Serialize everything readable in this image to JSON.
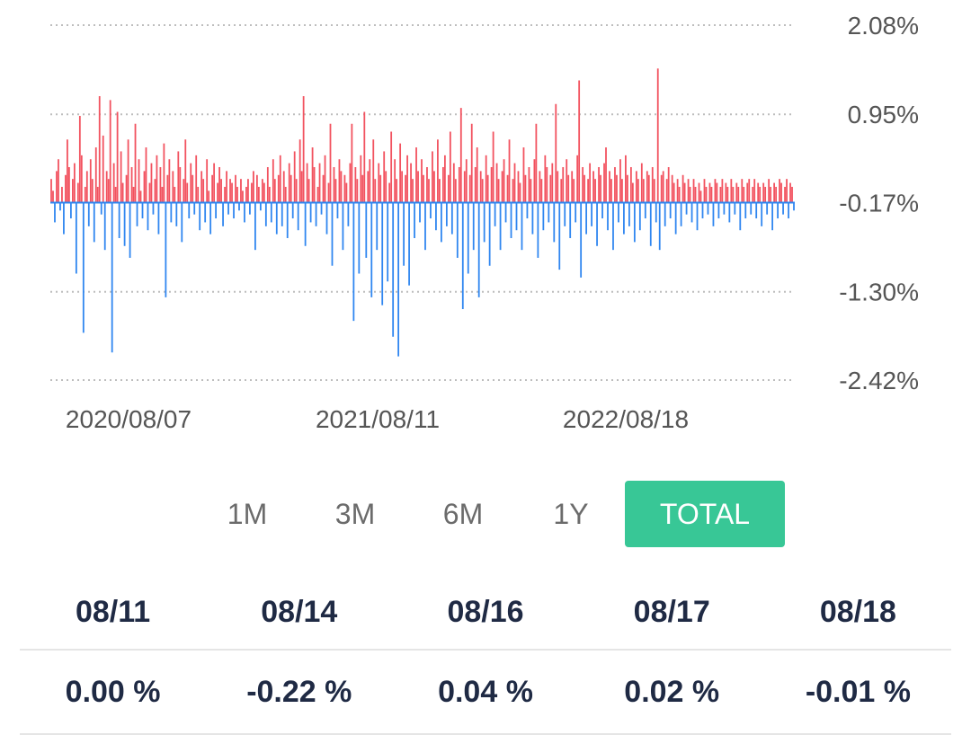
{
  "colors": {
    "positive": "#f2525f",
    "negative": "#2f86f0",
    "active": "#38c796",
    "grid": "#bdbdbd"
  },
  "chart_data": {
    "type": "bar",
    "y_tick_labels": [
      "2.08%",
      "0.95%",
      "-0.17%",
      "-1.30%",
      "-2.42%"
    ],
    "y_ticks": [
      2.08,
      0.95,
      -0.17,
      -1.3,
      -2.42
    ],
    "ylim": [
      -2.42,
      2.08
    ],
    "baseline": -0.17,
    "x_tick_labels": [
      "2020/08/07",
      "2021/08/11",
      "2022/08/18"
    ],
    "grid": "horizontal dotted",
    "values": [
      0.3,
      0.15,
      -0.25,
      0.4,
      0.55,
      -0.1,
      0.2,
      -0.4,
      0.35,
      0.8,
      0.45,
      -0.2,
      0.3,
      0.5,
      -0.9,
      0.25,
      1.1,
      0.6,
      -1.65,
      0.2,
      0.4,
      -0.3,
      0.55,
      0.3,
      -0.5,
      0.7,
      0.2,
      1.35,
      -0.15,
      0.85,
      -0.6,
      0.4,
      0.3,
      1.3,
      -1.9,
      0.5,
      0.2,
      1.15,
      -0.45,
      0.65,
      0.25,
      -0.55,
      0.35,
      0.8,
      -0.7,
      0.45,
      0.2,
      1.0,
      -0.3,
      0.55,
      0.15,
      -0.2,
      0.4,
      0.7,
      -0.35,
      0.25,
      0.5,
      -0.15,
      0.3,
      0.6,
      -0.4,
      0.45,
      0.2,
      0.75,
      -1.2,
      0.35,
      0.55,
      -0.25,
      0.4,
      0.2,
      -0.3,
      0.65,
      0.45,
      -0.5,
      0.3,
      0.8,
      0.25,
      -0.2,
      0.5,
      0.35,
      -0.15,
      0.6,
      0.2,
      -0.35,
      0.4,
      0.3,
      -0.25,
      0.55,
      0.15,
      -0.4,
      0.35,
      0.5,
      -0.2,
      0.25,
      0.45,
      0.3,
      -0.3,
      0.2,
      0.4,
      -0.15,
      0.3,
      0.25,
      -0.2,
      0.35,
      0.2,
      -0.1,
      0.3,
      0.15,
      -0.25,
      0.2,
      0.3,
      -0.15,
      0.25,
      0.4,
      -0.6,
      0.35,
      0.2,
      -0.1,
      0.3,
      0.25,
      -0.3,
      0.45,
      0.2,
      -0.25,
      0.55,
      0.3,
      -0.4,
      0.35,
      0.6,
      -0.3,
      0.4,
      0.2,
      -0.45,
      0.5,
      0.35,
      -0.2,
      0.65,
      0.3,
      -0.35,
      0.8,
      0.4,
      1.35,
      -0.55,
      0.5,
      0.3,
      -0.25,
      0.7,
      0.45,
      -0.3,
      0.2,
      0.5,
      -0.15,
      0.35,
      0.6,
      -0.4,
      0.25,
      1.0,
      -0.8,
      0.45,
      0.3,
      -0.2,
      0.55,
      0.4,
      -0.6,
      0.35,
      0.25,
      -0.3,
      0.5,
      1.0,
      -1.5,
      0.45,
      0.3,
      -0.9,
      0.6,
      0.35,
      1.15,
      -0.7,
      0.4,
      0.55,
      -1.2,
      0.8,
      0.3,
      -0.6,
      0.5,
      0.35,
      -1.3,
      0.65,
      0.4,
      -1.0,
      0.25,
      0.9,
      -1.7,
      0.55,
      0.3,
      -1.95,
      0.75,
      0.4,
      -0.8,
      0.35,
      0.6,
      -1.05,
      0.5,
      0.3,
      -0.45,
      0.7,
      0.4,
      -0.25,
      0.55,
      0.35,
      -0.6,
      0.45,
      0.3,
      -0.2,
      0.65,
      0.4,
      -0.35,
      0.8,
      0.3,
      -0.5,
      0.45,
      0.6,
      -0.3,
      0.35,
      0.9,
      -0.4,
      0.5,
      0.3,
      -0.7,
      0.45,
      1.2,
      -1.35,
      0.4,
      0.55,
      -0.9,
      0.35,
      1.0,
      -0.6,
      0.45,
      0.7,
      -1.2,
      0.4,
      0.3,
      -0.5,
      0.6,
      0.35,
      -0.8,
      0.45,
      0.9,
      -0.3,
      0.5,
      0.3,
      -0.6,
      0.4,
      0.55,
      -0.25,
      0.35,
      0.8,
      -0.45,
      0.3,
      0.5,
      -0.35,
      0.4,
      0.25,
      -0.6,
      0.7,
      0.35,
      -0.2,
      0.45,
      0.3,
      -0.4,
      0.55,
      1.0,
      -0.7,
      0.4,
      0.3,
      -0.35,
      0.6,
      0.45,
      -0.25,
      0.35,
      0.5,
      -0.5,
      1.25,
      0.4,
      -0.85,
      0.3,
      0.45,
      -0.3,
      0.55,
      0.35,
      -0.45,
      0.4,
      0.3,
      -0.25,
      0.6,
      1.55,
      -0.95,
      0.45,
      0.35,
      -0.4,
      0.3,
      0.5,
      -0.3,
      0.4,
      0.3,
      -0.55,
      0.45,
      0.35,
      -0.2,
      0.5,
      0.7,
      -0.35,
      0.4,
      0.3,
      -0.6,
      0.45,
      0.35,
      -0.25,
      0.55,
      0.3,
      -0.4,
      0.6,
      0.35,
      -0.3,
      0.45,
      0.25,
      -0.5,
      0.4,
      0.3,
      -0.35,
      0.5,
      0.3,
      -0.2,
      0.4,
      0.35,
      -0.55,
      0.45,
      0.3,
      -0.25,
      1.7,
      -0.6,
      0.35,
      0.4,
      -0.3,
      0.3,
      0.45,
      -0.2,
      0.35,
      0.25,
      -0.4,
      0.3,
      0.2,
      -0.3,
      0.35,
      0.25,
      -0.15,
      0.3,
      0.2,
      -0.25,
      0.3,
      0.2,
      -0.35,
      0.25,
      0.15,
      -0.2,
      0.3,
      0.2,
      -0.15,
      0.25,
      0.2,
      -0.3,
      0.3,
      0.25,
      -0.2,
      0.2,
      0.3,
      -0.15,
      0.25,
      0.2,
      -0.25,
      0.3,
      0.2,
      -0.15,
      0.25,
      0.2,
      -0.35,
      0.3,
      0.2,
      -0.2,
      0.25,
      0.3,
      -0.15,
      0.2,
      0.3,
      -0.2,
      0.25,
      0.2,
      -0.3,
      0.25,
      0.2,
      -0.15,
      0.3,
      0.2,
      -0.35,
      0.25,
      0.2,
      -0.2,
      0.3,
      0.25,
      -0.15,
      0.2,
      0.3,
      -0.2,
      0.25,
      0.2,
      -0.1
    ]
  },
  "periods": [
    {
      "label": "1M",
      "active": false
    },
    {
      "label": "3M",
      "active": false
    },
    {
      "label": "6M",
      "active": false
    },
    {
      "label": "1Y",
      "active": false
    },
    {
      "label": "TOTAL",
      "active": true
    }
  ],
  "table": {
    "dates": [
      "08/11",
      "08/14",
      "08/16",
      "08/17",
      "08/18"
    ],
    "values": [
      "0.00 %",
      "-0.22 %",
      "0.04 %",
      "0.02 %",
      "-0.01 %"
    ]
  }
}
